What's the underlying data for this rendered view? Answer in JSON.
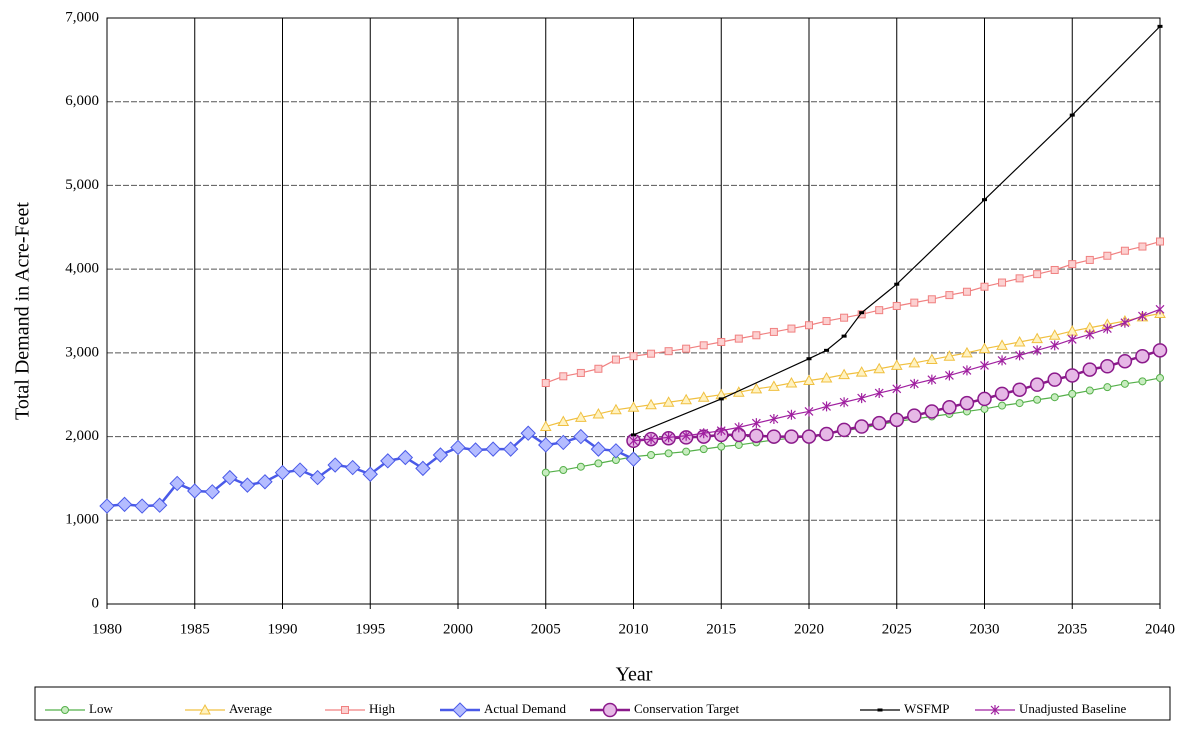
{
  "chart_data": {
    "type": "line",
    "xlabel": "Year",
    "ylabel": "Total Demand in Acre-Feet",
    "xlim": [
      1980,
      2040
    ],
    "xticks": [
      1980,
      1985,
      1990,
      1995,
      2000,
      2005,
      2010,
      2015,
      2020,
      2025,
      2030,
      2035,
      2040
    ],
    "ylim": [
      0,
      7000
    ],
    "yticks": [
      0,
      {
        "value": 1000,
        "label": "1,000"
      },
      {
        "value": 2000,
        "label": "2,000"
      },
      {
        "value": 3000,
        "label": "3,000"
      },
      {
        "value": 4000,
        "label": "4,000"
      },
      {
        "value": 5000,
        "label": "5,000"
      },
      {
        "value": 6000,
        "label": "6,000"
      },
      {
        "value": 7000,
        "label": "7,000"
      }
    ],
    "grid": true,
    "legend": "bottom",
    "series": [
      {
        "name": "Low",
        "color": "#55b04a",
        "fill": "#c8ecc0",
        "marker": "circle",
        "x": [
          2005,
          2006,
          2007,
          2008,
          2009,
          2010,
          2011,
          2012,
          2013,
          2014,
          2015,
          2016,
          2017,
          2018,
          2019,
          2020,
          2021,
          2022,
          2023,
          2024,
          2025,
          2026,
          2027,
          2028,
          2029,
          2030,
          2031,
          2032,
          2033,
          2034,
          2035,
          2036,
          2037,
          2038,
          2039,
          2040
        ],
        "values": [
          1570,
          1600,
          1640,
          1680,
          1720,
          1760,
          1780,
          1800,
          1820,
          1850,
          1880,
          1900,
          1930,
          1960,
          1980,
          2000,
          2040,
          2070,
          2100,
          2140,
          2180,
          2210,
          2240,
          2270,
          2300,
          2330,
          2370,
          2400,
          2440,
          2470,
          2510,
          2550,
          2590,
          2630,
          2660,
          2700
        ]
      },
      {
        "name": "Average",
        "color": "#f0c040",
        "fill": "#fff2c0",
        "marker": "triangle",
        "x": [
          2005,
          2006,
          2007,
          2008,
          2009,
          2010,
          2011,
          2012,
          2013,
          2014,
          2015,
          2016,
          2017,
          2018,
          2019,
          2020,
          2021,
          2022,
          2023,
          2024,
          2025,
          2026,
          2027,
          2028,
          2029,
          2030,
          2031,
          2032,
          2033,
          2034,
          2035,
          2036,
          2037,
          2038,
          2039,
          2040
        ],
        "values": [
          2120,
          2180,
          2230,
          2270,
          2320,
          2350,
          2380,
          2410,
          2440,
          2470,
          2500,
          2530,
          2570,
          2600,
          2640,
          2670,
          2700,
          2740,
          2770,
          2810,
          2850,
          2880,
          2920,
          2960,
          3000,
          3050,
          3090,
          3130,
          3170,
          3210,
          3260,
          3300,
          3340,
          3380,
          3430,
          3470
        ]
      },
      {
        "name": "High",
        "color": "#f08080",
        "fill": "#fcd0d0",
        "marker": "square",
        "x": [
          2005,
          2006,
          2007,
          2008,
          2009,
          2010,
          2011,
          2012,
          2013,
          2014,
          2015,
          2016,
          2017,
          2018,
          2019,
          2020,
          2021,
          2022,
          2023,
          2024,
          2025,
          2026,
          2027,
          2028,
          2029,
          2030,
          2031,
          2032,
          2033,
          2034,
          2035,
          2036,
          2037,
          2038,
          2039,
          2040
        ],
        "values": [
          2640,
          2720,
          2760,
          2810,
          2920,
          2960,
          2990,
          3020,
          3050,
          3090,
          3130,
          3170,
          3210,
          3250,
          3290,
          3330,
          3380,
          3420,
          3460,
          3510,
          3560,
          3600,
          3640,
          3690,
          3730,
          3790,
          3840,
          3890,
          3940,
          3990,
          4060,
          4110,
          4160,
          4220,
          4270,
          4330
        ]
      },
      {
        "name": "Actual Demand",
        "color": "#4a5ae8",
        "fill": "#b4bcff",
        "marker": "diamond",
        "x": [
          1980,
          1981,
          1982,
          1983,
          1984,
          1985,
          1986,
          1987,
          1988,
          1989,
          1990,
          1991,
          1992,
          1993,
          1994,
          1995,
          1996,
          1997,
          1998,
          1999,
          2000,
          2001,
          2002,
          2003,
          2004,
          2005,
          2006,
          2007,
          2008,
          2009,
          2010
        ],
        "values": [
          1170,
          1190,
          1170,
          1180,
          1440,
          1350,
          1340,
          1510,
          1420,
          1460,
          1570,
          1600,
          1510,
          1660,
          1630,
          1550,
          1710,
          1750,
          1620,
          1780,
          1870,
          1840,
          1850,
          1850,
          2040,
          1900,
          1930,
          2000,
          1850,
          1830,
          1730
        ]
      },
      {
        "name": "Conservation Target",
        "color": "#8b1a8b",
        "fill": "#e6b8e6",
        "marker": "bigcircle",
        "x": [
          2010,
          2011,
          2012,
          2013,
          2014,
          2015,
          2016,
          2017,
          2018,
          2019,
          2020,
          2021,
          2022,
          2023,
          2024,
          2025,
          2026,
          2027,
          2028,
          2029,
          2030,
          2031,
          2032,
          2033,
          2034,
          2035,
          2036,
          2037,
          2038,
          2039,
          2040
        ],
        "values": [
          1950,
          1970,
          1980,
          1990,
          2000,
          2020,
          2020,
          2010,
          2000,
          2000,
          2000,
          2030,
          2080,
          2120,
          2160,
          2200,
          2250,
          2300,
          2350,
          2400,
          2450,
          2510,
          2560,
          2620,
          2680,
          2730,
          2800,
          2840,
          2900,
          2960,
          3030
        ]
      },
      {
        "name": "WSFMP",
        "color": "#000000",
        "fill": "#000000",
        "marker": "dash",
        "x": [
          2010,
          2015,
          2020,
          2021,
          2022,
          2023,
          2025,
          2030,
          2035,
          2040
        ],
        "values": [
          2020,
          2450,
          2930,
          3030,
          3200,
          3480,
          3820,
          4830,
          5840,
          6900
        ]
      },
      {
        "name": "Unadjusted Baseline",
        "color": "#a020a0",
        "fill": "#a020a0",
        "marker": "star",
        "x": [
          2010,
          2011,
          2012,
          2013,
          2014,
          2015,
          2016,
          2017,
          2018,
          2019,
          2020,
          2021,
          2022,
          2023,
          2024,
          2025,
          2026,
          2027,
          2028,
          2029,
          2030,
          2031,
          2032,
          2033,
          2034,
          2035,
          2036,
          2037,
          2038,
          2039,
          2040
        ],
        "values": [
          1950,
          1970,
          1990,
          2010,
          2040,
          2070,
          2110,
          2160,
          2210,
          2260,
          2300,
          2360,
          2410,
          2460,
          2520,
          2570,
          2630,
          2680,
          2730,
          2790,
          2850,
          2910,
          2970,
          3030,
          3090,
          3160,
          3220,
          3290,
          3360,
          3440,
          3520
        ]
      }
    ]
  }
}
